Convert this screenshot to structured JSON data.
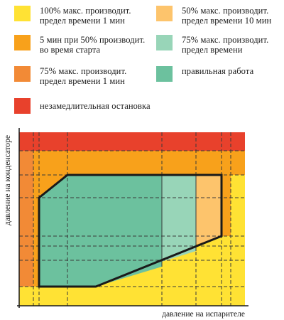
{
  "legend": [
    {
      "key": "full_1min",
      "lines": [
        "100% макс. производит.",
        "предел времени 1 мин"
      ],
      "color": "#FFE234"
    },
    {
      "key": "half_10min",
      "lines": [
        "50% макс. производит.",
        "предел времени 10 мин"
      ],
      "color": "#FDC46C"
    },
    {
      "key": "start_5min",
      "lines": [
        "5 мин при 50% производит.",
        "во время старта"
      ],
      "color": "#F8A11B"
    },
    {
      "key": "p75_time",
      "lines": [
        "75% макс. производит.",
        "предел времени"
      ],
      "color": "#98D5B8"
    },
    {
      "key": "p75_1min",
      "lines": [
        "75% макс. производит.",
        "предел времени 1 мин"
      ],
      "color": "#F28A36"
    },
    {
      "key": "normal",
      "lines": [
        "правильная работа"
      ],
      "color": "#6CC19E"
    },
    {
      "key": "stop",
      "lines": [
        "незамедлительная остановка"
      ],
      "color": "#E8412C"
    }
  ],
  "axes": {
    "x_label": "давление на испарителе",
    "y_label": "давление на конденсаторе"
  },
  "colors": {
    "outline": "#1a1a1a",
    "gridline": "#3a3a3a"
  }
}
